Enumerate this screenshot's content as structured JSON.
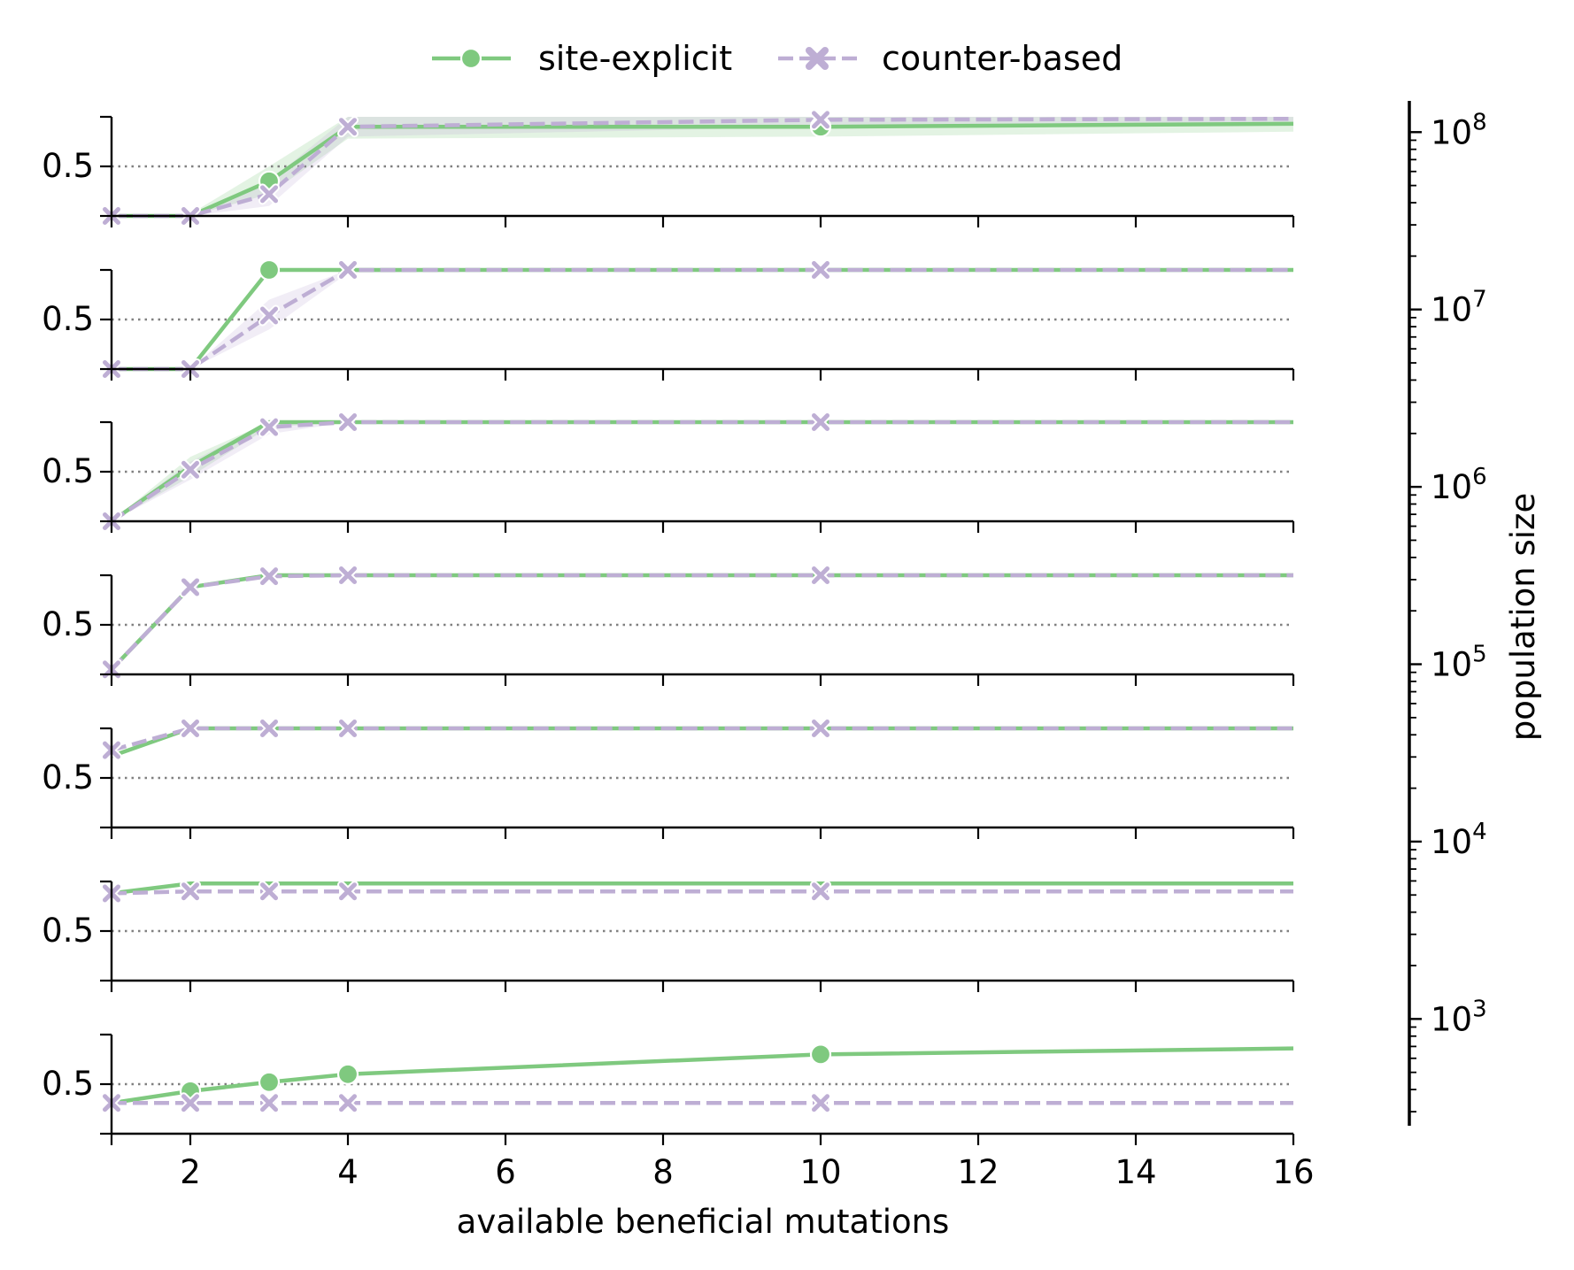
{
  "chart_data": {
    "type": "line",
    "xlabel": "available beneficial mutations",
    "x_ticks": [
      2,
      4,
      6,
      8,
      10,
      12,
      14,
      16
    ],
    "xlim": [
      1,
      16
    ],
    "ylim": [
      0.0,
      1.0
    ],
    "y_tick_label": "0.5",
    "reference_line": 0.5,
    "legend": {
      "placement": "top-center",
      "entries": [
        {
          "label": "site-explicit",
          "color": "#7fc97f",
          "marker": "circle",
          "linestyle": "solid"
        },
        {
          "label": "counter-based",
          "color": "#beaed4",
          "marker": "x",
          "linestyle": "dashed"
        }
      ]
    },
    "colorbar": {
      "label": "population size",
      "scale": "log",
      "ticks": [
        "10^8",
        "10^7",
        "10^6",
        "10^5",
        "10^4",
        "10^3"
      ],
      "range": [
        250,
        150000000
      ]
    },
    "panels": [
      {
        "series": [
          {
            "name": "site-explicit",
            "x": [
              1,
              2,
              3,
              4,
              10,
              16
            ],
            "y": [
              0.0,
              0.0,
              0.35,
              0.9,
              0.9,
              0.93
            ],
            "band": [
              [
                0.0,
                0.0
              ],
              [
                0.0,
                0.02
              ],
              [
                0.22,
                0.5
              ],
              [
                0.78,
                1.0
              ],
              [
                0.8,
                1.0
              ],
              [
                0.85,
                1.0
              ]
            ],
            "markers": [
              3,
              10
            ]
          },
          {
            "name": "counter-based",
            "x": [
              1,
              2,
              3,
              4,
              10,
              16
            ],
            "y": [
              0.0,
              0.0,
              0.22,
              0.9,
              0.97,
              0.98
            ],
            "band": [
              [
                0.0,
                0.0
              ],
              [
                0.0,
                0.02
              ],
              [
                0.1,
                0.35
              ],
              [
                0.8,
                1.0
              ],
              [
                0.9,
                1.0
              ],
              [
                0.95,
                1.0
              ]
            ],
            "markers": [
              1,
              2,
              3,
              4,
              10
            ]
          }
        ]
      },
      {
        "series": [
          {
            "name": "site-explicit",
            "x": [
              1,
              2,
              3,
              4,
              10,
              16
            ],
            "y": [
              0.0,
              0.0,
              1.0,
              1.0,
              1.0,
              1.0
            ],
            "band": null,
            "markers": [
              3
            ]
          },
          {
            "name": "counter-based",
            "x": [
              1,
              2,
              3,
              4,
              10,
              16
            ],
            "y": [
              0.0,
              0.0,
              0.54,
              1.0,
              1.0,
              1.0
            ],
            "band": [
              [
                0.0,
                0.0
              ],
              [
                0.0,
                0.0
              ],
              [
                0.4,
                0.7
              ],
              [
                0.97,
                1.0
              ],
              [
                1.0,
                1.0
              ],
              [
                1.0,
                1.0
              ]
            ],
            "markers": [
              1,
              2,
              3,
              4,
              10
            ]
          }
        ]
      },
      {
        "series": [
          {
            "name": "site-explicit",
            "x": [
              1,
              2,
              3,
              4,
              10,
              16
            ],
            "y": [
              0.0,
              0.55,
              1.0,
              1.0,
              1.0,
              1.0
            ],
            "band": [
              [
                0.0,
                0.0
              ],
              [
                0.45,
                0.65
              ],
              [
                0.95,
                1.0
              ],
              [
                1.0,
                1.0
              ],
              [
                1.0,
                1.0
              ],
              [
                1.0,
                1.0
              ]
            ],
            "markers": []
          },
          {
            "name": "counter-based",
            "x": [
              1,
              2,
              3,
              4,
              10,
              16
            ],
            "y": [
              0.0,
              0.52,
              0.95,
              1.0,
              1.0,
              1.0
            ],
            "band": [
              [
                0.0,
                0.0
              ],
              [
                0.42,
                0.6
              ],
              [
                0.88,
                1.0
              ],
              [
                1.0,
                1.0
              ],
              [
                1.0,
                1.0
              ],
              [
                1.0,
                1.0
              ]
            ],
            "markers": [
              1,
              2,
              3,
              4,
              10
            ]
          }
        ]
      },
      {
        "series": [
          {
            "name": "site-explicit",
            "x": [
              1,
              2,
              3,
              4,
              10,
              16
            ],
            "y": [
              0.05,
              0.88,
              1.0,
              1.0,
              1.0,
              1.0
            ],
            "band": null,
            "markers": []
          },
          {
            "name": "counter-based",
            "x": [
              1,
              2,
              3,
              4,
              10,
              16
            ],
            "y": [
              0.05,
              0.88,
              0.99,
              1.0,
              1.0,
              1.0
            ],
            "band": null,
            "markers": [
              1,
              2,
              3,
              4,
              10
            ]
          }
        ]
      },
      {
        "series": [
          {
            "name": "site-explicit",
            "x": [
              1,
              2,
              3,
              4,
              10,
              16
            ],
            "y": [
              0.72,
              1.0,
              1.0,
              1.0,
              1.0,
              1.0
            ],
            "band": null,
            "markers": []
          },
          {
            "name": "counter-based",
            "x": [
              1,
              2,
              3,
              4,
              10,
              16
            ],
            "y": [
              0.78,
              1.0,
              1.0,
              1.0,
              1.0,
              1.0
            ],
            "band": null,
            "markers": [
              1,
              2,
              3,
              4,
              10
            ]
          }
        ]
      },
      {
        "series": [
          {
            "name": "site-explicit",
            "x": [
              1,
              2,
              3,
              4,
              10,
              16
            ],
            "y": [
              0.88,
              0.98,
              0.98,
              0.98,
              0.98,
              0.98
            ],
            "band": null,
            "markers": []
          },
          {
            "name": "counter-based",
            "x": [
              1,
              2,
              3,
              4,
              10,
              16
            ],
            "y": [
              0.88,
              0.9,
              0.9,
              0.9,
              0.9,
              0.9
            ],
            "band": null,
            "markers": [
              1,
              2,
              3,
              4,
              10
            ]
          }
        ]
      },
      {
        "series": [
          {
            "name": "site-explicit",
            "x": [
              1,
              2,
              3,
              4,
              10,
              16
            ],
            "y": [
              0.31,
              0.43,
              0.52,
              0.6,
              0.8,
              0.86
            ],
            "band": null,
            "markers": [
              2,
              3,
              4,
              10
            ]
          },
          {
            "name": "counter-based",
            "x": [
              1,
              2,
              3,
              4,
              10,
              16
            ],
            "y": [
              0.31,
              0.31,
              0.31,
              0.31,
              0.31,
              0.31
            ],
            "band": null,
            "markers": [
              1,
              2,
              3,
              4,
              10
            ]
          }
        ]
      }
    ]
  }
}
